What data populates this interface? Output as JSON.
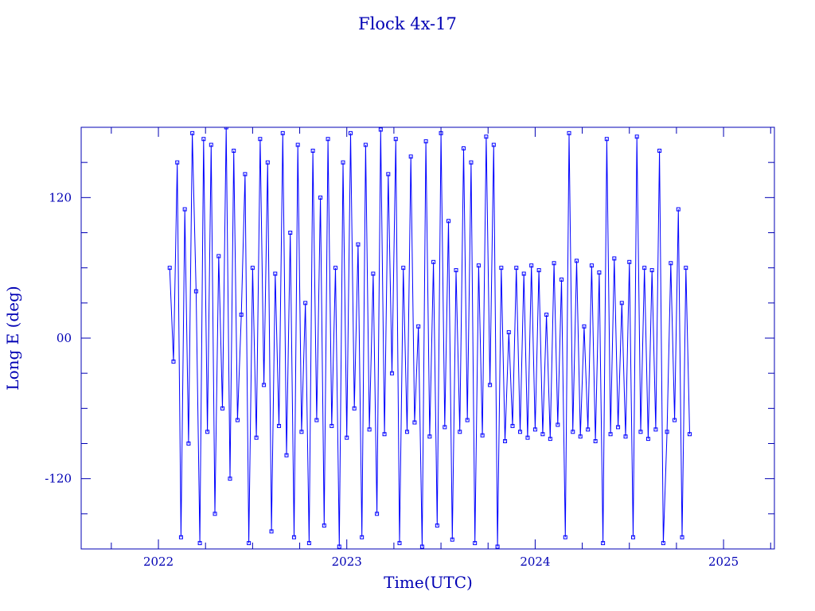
{
  "chart_data": {
    "type": "line",
    "title": "Flock 4x-17",
    "xlabel": "Time(UTC)",
    "ylabel": "Long E (deg)",
    "xlim": [
      2021.59,
      2025.27
    ],
    "ylim": [
      -180,
      180
    ],
    "xticks": [
      2022,
      2023,
      2024,
      2025
    ],
    "xtick_labels": [
      "2022",
      "2023",
      "2024",
      "2025"
    ],
    "yticks": [
      120,
      0,
      -120
    ],
    "ytick_labels": [
      "120",
      "00",
      "-120"
    ],
    "grid": false,
    "markers": "square",
    "colors": {
      "series": "#0000ff",
      "axes": "#0000b4"
    },
    "series": [
      {
        "x": [
          2022.06,
          2022.08,
          2022.1,
          2022.12,
          2022.14,
          2022.16,
          2022.18,
          2022.2,
          2022.22,
          2022.24,
          2022.26,
          2022.28,
          2022.3,
          2022.32,
          2022.34,
          2022.36,
          2022.38,
          2022.4,
          2022.42,
          2022.44,
          2022.46,
          2022.48,
          2022.5,
          2022.52,
          2022.54,
          2022.56,
          2022.58,
          2022.6,
          2022.62,
          2022.64,
          2022.66,
          2022.68,
          2022.7,
          2022.72,
          2022.74,
          2022.76,
          2022.78,
          2022.8,
          2022.82,
          2022.84,
          2022.86,
          2022.88,
          2022.9,
          2022.92,
          2022.94,
          2022.96,
          2022.98,
          2023.0,
          2023.02,
          2023.04,
          2023.06,
          2023.08,
          2023.1,
          2023.12,
          2023.14,
          2023.16,
          2023.18,
          2023.2,
          2023.22,
          2023.24,
          2023.26,
          2023.28,
          2023.3,
          2023.32,
          2023.34,
          2023.36,
          2023.38,
          2023.4,
          2023.42,
          2023.44,
          2023.46,
          2023.48,
          2023.5,
          2023.52,
          2023.54,
          2023.56,
          2023.58,
          2023.6,
          2023.62,
          2023.64,
          2023.66,
          2023.68,
          2023.7,
          2023.72,
          2023.74,
          2023.76,
          2023.78,
          2023.8,
          2023.82,
          2023.84,
          2023.86,
          2023.88,
          2023.9,
          2023.92,
          2023.94,
          2023.96,
          2023.98,
          2024.0,
          2024.02,
          2024.04,
          2024.06,
          2024.08,
          2024.1,
          2024.12,
          2024.14,
          2024.16,
          2024.18,
          2024.2,
          2024.22,
          2024.24,
          2024.26,
          2024.28,
          2024.3,
          2024.32,
          2024.34,
          2024.36,
          2024.38,
          2024.4,
          2024.42,
          2024.44,
          2024.46,
          2024.48,
          2024.5,
          2024.52,
          2024.54,
          2024.56,
          2024.58,
          2024.6,
          2024.62,
          2024.64,
          2024.66,
          2024.68,
          2024.7,
          2024.72,
          2024.74,
          2024.76,
          2024.78,
          2024.8,
          2024.82
        ],
        "y": [
          60,
          -20,
          150,
          -170,
          110,
          -90,
          175,
          40,
          -175,
          170,
          -80,
          165,
          -150,
          70,
          -60,
          180,
          -120,
          160,
          -70,
          20,
          140,
          -175,
          60,
          -85,
          170,
          -40,
          150,
          -165,
          55,
          -75,
          175,
          -100,
          90,
          -170,
          165,
          -80,
          30,
          -175,
          160,
          -70,
          120,
          -160,
          170,
          -75,
          60,
          -178,
          150,
          -85,
          175,
          -60,
          80,
          -170,
          165,
          -78,
          55,
          -150,
          178,
          -82,
          140,
          -30,
          170,
          -175,
          60,
          -80,
          155,
          -72,
          10,
          -178,
          168,
          -84,
          65,
          -160,
          175,
          -76,
          100,
          -172,
          58,
          -80,
          162,
          -70,
          150,
          -175,
          62,
          -83,
          172,
          -40,
          165,
          -178,
          60,
          -88,
          5,
          -75,
          60,
          -80,
          55,
          -85,
          62,
          -78,
          58,
          -82,
          20,
          -86,
          64,
          -74,
          50,
          -170,
          175,
          -80,
          66,
          -84,
          10,
          -78,
          62,
          -88,
          56,
          -175,
          170,
          -82,
          68,
          -76,
          30,
          -84,
          65,
          -170,
          172,
          -80,
          60,
          -86,
          58,
          -78,
          160,
          -175,
          -80,
          64,
          -70,
          110,
          -170,
          60,
          -82
        ]
      }
    ]
  }
}
